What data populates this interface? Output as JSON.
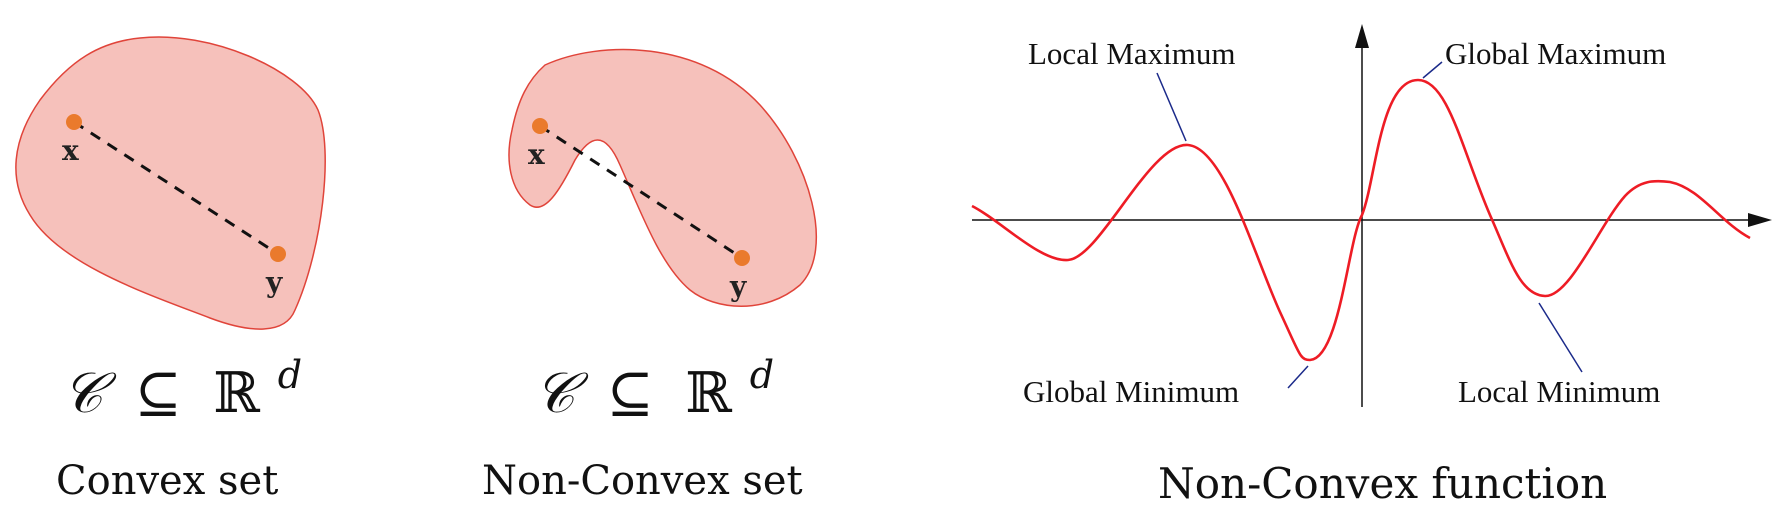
{
  "panels": {
    "convex": {
      "point_x_label": "x",
      "point_y_label": "y",
      "set_symbol": "𝒞",
      "subset_symbol": "⊆",
      "space_symbol": "ℝ",
      "dimension": "d",
      "caption": "Convex set"
    },
    "nonconvex": {
      "point_x_label": "x",
      "point_y_label": "y",
      "set_symbol": "𝒞",
      "subset_symbol": "⊆",
      "space_symbol": "ℝ",
      "dimension": "d",
      "caption": "Non-Convex set"
    },
    "function": {
      "annotations": {
        "local_maximum": "Local Maximum",
        "global_maximum": "Global Maximum",
        "global_minimum": "Global Minimum",
        "local_minimum": "Local Minimum"
      },
      "caption": "Non-Convex function"
    }
  },
  "colors": {
    "set_fill": "#f6c1bb",
    "set_stroke": "#e0443a",
    "point": "#ea7a2c",
    "curve": "#ee1c25",
    "leader_line": "#1b2a8a",
    "axis": "#111111"
  }
}
